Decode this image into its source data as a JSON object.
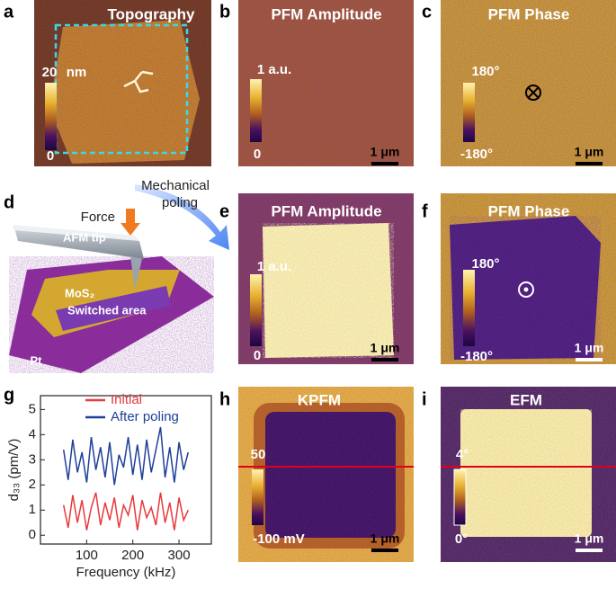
{
  "figure": {
    "a": {
      "letter": "a",
      "title": "Topography",
      "colorbar_max": "20",
      "colorbar_unit": "nm",
      "colorbar_min": "0"
    },
    "b": {
      "letter": "b",
      "title": "PFM Amplitude",
      "colorbar_max": "1 a.u.",
      "colorbar_min": "0",
      "scale_bar": "1 μm"
    },
    "c": {
      "letter": "c",
      "title": "PFM Phase",
      "colorbar_max": "180°",
      "colorbar_min": "-180°",
      "scale_bar": "1 μm"
    },
    "d": {
      "letter": "d",
      "arrow_label": [
        "Mechanical",
        "poling"
      ],
      "force": "Force",
      "tip": "AFM tip",
      "flake": "MoS₂",
      "switched": "Switched area",
      "substrate": "Pt"
    },
    "e": {
      "letter": "e",
      "title": "PFM Amplitude",
      "colorbar_max": "1 a.u.",
      "colorbar_min": "0",
      "scale_bar": "1 μm"
    },
    "f": {
      "letter": "f",
      "title": "PFM Phase",
      "colorbar_max": "180°",
      "colorbar_min": "-180°",
      "scale_bar": "1 μm"
    },
    "h": {
      "letter": "h",
      "title": "KPFM",
      "colorbar_max": "50",
      "colorbar_min": "-100 mV",
      "scale_bar": "1 μm"
    },
    "i": {
      "letter": "i",
      "title": "EFM",
      "colorbar_max": "4°",
      "colorbar_min": "0°",
      "scale_bar": "1 μm"
    }
  },
  "chart_data": {
    "type": "line",
    "panel_label": "g",
    "x_label": "Frequency (kHz)",
    "y_label": "d₃₃ (pm/V)",
    "x": [
      50,
      60,
      70,
      80,
      90,
      100,
      110,
      120,
      130,
      140,
      150,
      160,
      170,
      180,
      190,
      200,
      210,
      220,
      230,
      240,
      250,
      260,
      270,
      280,
      290,
      300,
      310,
      320
    ],
    "series": [
      {
        "name": "Initial",
        "color": "#e8393c",
        "values": [
          1.2,
          0.3,
          1.6,
          0.5,
          1.4,
          0.2,
          1.1,
          1.7,
          0.4,
          1.3,
          0.6,
          1.5,
          0.3,
          1.2,
          0.8,
          1.6,
          0.2,
          1.4,
          0.7,
          1.1,
          0.4,
          1.7,
          0.5,
          1.3,
          0.2,
          1.5,
          0.6,
          1.0
        ]
      },
      {
        "name": "After poling",
        "color": "#1f3f99",
        "values": [
          3.4,
          2.2,
          3.8,
          2.5,
          3.3,
          2.1,
          3.9,
          2.6,
          3.5,
          2.3,
          3.7,
          2.0,
          3.2,
          2.7,
          3.9,
          2.4,
          3.6,
          2.2,
          3.8,
          2.5,
          3.4,
          4.3,
          2.3,
          3.5,
          2.1,
          3.7,
          2.6,
          3.3
        ]
      }
    ],
    "xlim": [
      0,
      370
    ],
    "xticks": [
      100,
      200,
      300
    ],
    "ylim": [
      -0.35,
      5.55
    ],
    "yticks": [
      0,
      1,
      2,
      3,
      4,
      5
    ],
    "legend": "upper right"
  }
}
